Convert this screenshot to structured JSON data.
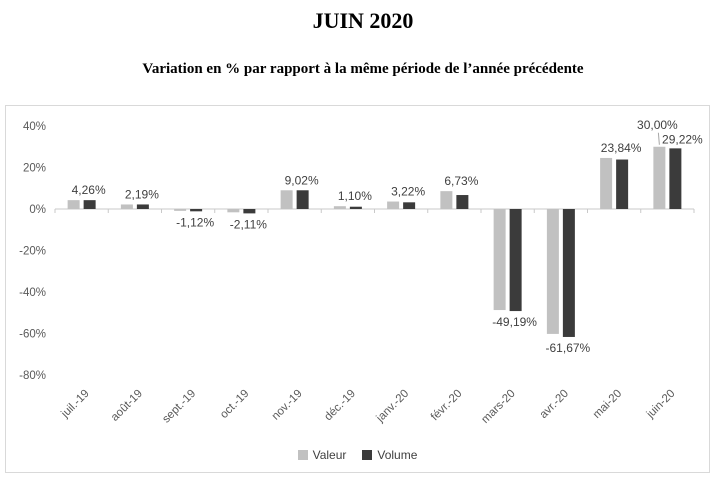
{
  "title": "JUIN 2020",
  "subtitle": "Variation en % par rapport à la même période de l’année précédente",
  "colors": {
    "valeur": "#c1c1c1",
    "volume": "#3b3b3b",
    "axis_line": "#c9c9c9",
    "frame_border": "#d9d9d9",
    "tick_text": "#595959",
    "data_label_text": "#404040",
    "leader_line": "#a6a6a6"
  },
  "legend": {
    "items": [
      {
        "label": "Valeur",
        "color": "#c1c1c1"
      },
      {
        "label": "Volume",
        "color": "#3b3b3b"
      }
    ]
  },
  "chart_data": {
    "type": "bar",
    "title": "JUIN 2020",
    "subtitle": "Variation en % par rapport à la même période de l’année précédente",
    "categories": [
      "juil.-19",
      "août-19",
      "sept.-19",
      "oct.-19",
      "nov.-19",
      "déc.-19",
      "janv.-20",
      "févr.-20",
      "mars-20",
      "avr.-20",
      "mai-20",
      "juin-20"
    ],
    "series": [
      {
        "name": "Valeur",
        "color": "#c1c1c1",
        "values": [
          4.26,
          2.19,
          -0.9,
          -1.6,
          9.02,
          1.35,
          3.6,
          8.6,
          -48.7,
          -60.2,
          24.6,
          30.0
        ]
      },
      {
        "name": "Volume",
        "color": "#3b3b3b",
        "values": [
          4.26,
          2.19,
          -1.12,
          -2.11,
          9.02,
          1.1,
          3.22,
          6.73,
          -49.19,
          -61.67,
          23.84,
          29.22
        ]
      }
    ],
    "data_labels": [
      {
        "category": "juil.-19",
        "text": "4,26%",
        "position": "above"
      },
      {
        "category": "août-19",
        "text": "2,19%",
        "position": "above"
      },
      {
        "category": "sept.-19",
        "text": "-1,12%",
        "position": "below"
      },
      {
        "category": "oct.-19",
        "text": "-2,11%",
        "position": "below"
      },
      {
        "category": "nov.-19",
        "text": "9,02%",
        "position": "above"
      },
      {
        "category": "déc.-19",
        "text": "1,10%",
        "position": "above"
      },
      {
        "category": "janv.-20",
        "text": "3,22%",
        "position": "above"
      },
      {
        "category": "févr.-20",
        "text": "6,73%",
        "position": "above"
      },
      {
        "category": "mars-20",
        "text": "-49,19%",
        "position": "below"
      },
      {
        "category": "avr.-20",
        "text": "-61,67%",
        "position": "below"
      },
      {
        "category": "mai-20",
        "text": "23,84%",
        "position": "above"
      },
      {
        "category": "juin-20",
        "text": "30,00%",
        "position": "above-valeur",
        "leader": true
      },
      {
        "category": "juin-20",
        "text": "29,22%",
        "position": "above-volume"
      }
    ],
    "y_ticks": [
      "40%",
      "20%",
      "0%",
      "-20%",
      "-40%",
      "-60%",
      "-80%"
    ],
    "y_tick_values": [
      40,
      20,
      0,
      -20,
      -40,
      -60,
      -80
    ],
    "ylim": [
      -80,
      45
    ],
    "xlabel": "",
    "ylabel": "",
    "grid": false,
    "legend_position": "bottom"
  }
}
